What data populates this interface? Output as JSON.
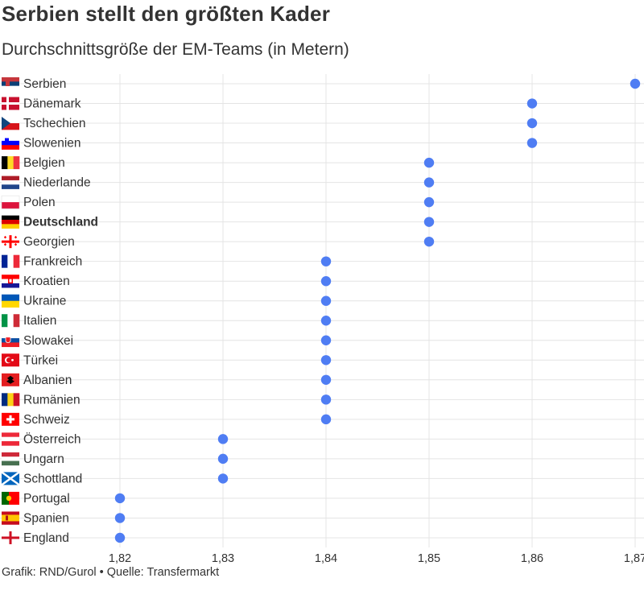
{
  "title": "Serbien stellt den größten Kader",
  "subtitle": "Durchschnittsgröße der EM-Teams (in Metern)",
  "footer": "Grafik: RND/Gurol • Quelle: Transfermarkt",
  "colors": {
    "dot": "#4f7df3",
    "grid": "#e4e4e4",
    "text": "#333333"
  },
  "chart_data": {
    "type": "scatter",
    "title": "Serbien stellt den größten Kader",
    "subtitle": "Durchschnittsgröße der EM-Teams (in Metern)",
    "xlabel": "",
    "ylabel": "",
    "xlim": [
      1.82,
      1.87
    ],
    "xticks": [
      1.82,
      1.83,
      1.84,
      1.85,
      1.86,
      1.87
    ],
    "xtick_labels": [
      "1,82",
      "1,83",
      "1,84",
      "1,85",
      "1,86",
      "1,87"
    ],
    "grid": true,
    "highlight": "Deutschland",
    "points": [
      {
        "team": "Serbien",
        "value": 1.87,
        "flag": "serbia"
      },
      {
        "team": "Dänemark",
        "value": 1.86,
        "flag": "denmark"
      },
      {
        "team": "Tschechien",
        "value": 1.86,
        "flag": "czechia"
      },
      {
        "team": "Slowenien",
        "value": 1.86,
        "flag": "slovenia"
      },
      {
        "team": "Belgien",
        "value": 1.85,
        "flag": "belgium"
      },
      {
        "team": "Niederlande",
        "value": 1.85,
        "flag": "netherlands"
      },
      {
        "team": "Polen",
        "value": 1.85,
        "flag": "poland"
      },
      {
        "team": "Deutschland",
        "value": 1.85,
        "flag": "germany"
      },
      {
        "team": "Georgien",
        "value": 1.85,
        "flag": "georgia"
      },
      {
        "team": "Frankreich",
        "value": 1.84,
        "flag": "france"
      },
      {
        "team": "Kroatien",
        "value": 1.84,
        "flag": "croatia"
      },
      {
        "team": "Ukraine",
        "value": 1.84,
        "flag": "ukraine"
      },
      {
        "team": "Italien",
        "value": 1.84,
        "flag": "italy"
      },
      {
        "team": "Slowakei",
        "value": 1.84,
        "flag": "slovakia"
      },
      {
        "team": "Türkei",
        "value": 1.84,
        "flag": "turkey"
      },
      {
        "team": "Albanien",
        "value": 1.84,
        "flag": "albania"
      },
      {
        "team": "Rumänien",
        "value": 1.84,
        "flag": "romania"
      },
      {
        "team": "Schweiz",
        "value": 1.84,
        "flag": "switzerland"
      },
      {
        "team": "Österreich",
        "value": 1.83,
        "flag": "austria"
      },
      {
        "team": "Ungarn",
        "value": 1.83,
        "flag": "hungary"
      },
      {
        "team": "Schottland",
        "value": 1.83,
        "flag": "scotland"
      },
      {
        "team": "Portugal",
        "value": 1.82,
        "flag": "portugal"
      },
      {
        "team": "Spanien",
        "value": 1.82,
        "flag": "spain"
      },
      {
        "team": "England",
        "value": 1.82,
        "flag": "england"
      }
    ]
  }
}
